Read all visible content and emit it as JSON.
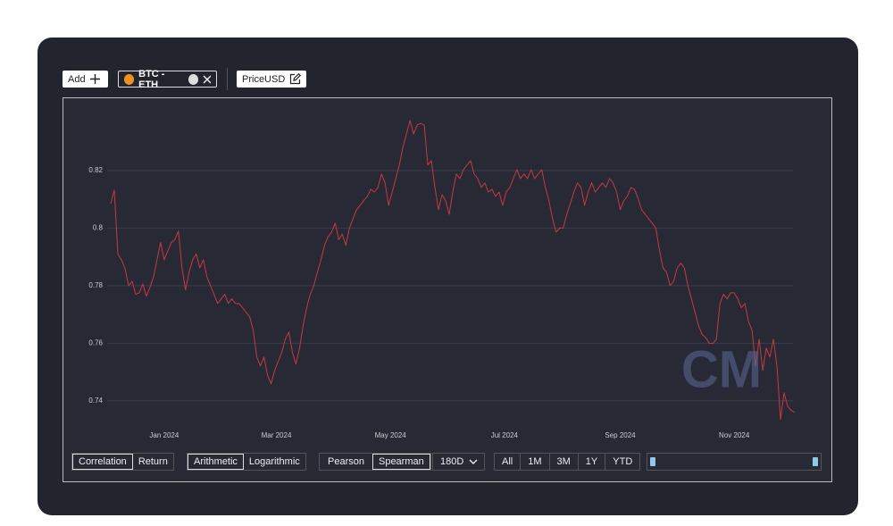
{
  "toolbar": {
    "add": "Add",
    "pair": "BTC - ETH",
    "metric": "PriceUSD"
  },
  "chart_data": {
    "type": "line",
    "color": "#c8393f",
    "grid": true,
    "x": [
      0,
      2,
      4,
      6,
      8,
      10,
      12,
      14,
      16,
      18,
      20,
      22,
      24,
      26,
      28,
      30,
      32,
      34,
      36,
      38,
      40,
      42,
      44,
      46,
      48,
      50,
      52,
      54,
      56,
      58,
      60,
      62,
      64,
      66,
      68,
      70,
      72,
      74,
      76,
      78,
      80,
      82,
      84,
      86,
      88,
      90,
      92,
      94,
      96,
      98,
      100,
      102,
      104,
      106,
      108,
      110,
      112,
      114,
      116,
      118,
      120,
      122,
      124,
      126,
      128,
      130,
      132,
      134,
      136,
      138,
      140,
      142,
      144,
      146,
      148,
      150,
      152,
      154,
      156,
      158,
      160,
      162,
      164,
      166,
      168,
      170,
      172,
      174,
      176,
      178,
      180,
      182,
      184,
      186,
      188,
      190,
      192,
      194,
      196,
      198,
      200,
      202,
      204,
      206,
      208,
      210,
      212,
      214,
      216,
      218,
      220,
      222,
      224,
      226,
      228,
      230,
      232,
      234,
      236,
      238,
      240,
      242,
      244,
      246,
      248,
      250,
      252,
      254,
      256,
      258,
      260,
      262,
      264,
      266,
      268,
      270,
      272,
      274,
      276,
      278,
      280,
      282,
      284,
      286,
      288,
      290,
      292,
      294,
      296,
      298,
      300,
      302,
      304,
      306,
      308,
      310,
      312,
      314,
      316,
      318,
      320,
      322,
      324,
      326,
      328,
      330,
      332,
      334,
      336,
      338,
      340,
      342,
      344,
      346,
      348,
      350,
      352,
      354,
      356,
      358,
      360,
      362,
      364,
      366,
      368,
      370,
      372,
      374,
      376,
      378,
      380,
      382,
      384
    ],
    "values": [
      0.8085,
      0.8132,
      0.791,
      0.789,
      0.786,
      0.78,
      0.7815,
      0.777,
      0.7775,
      0.7806,
      0.7763,
      0.7794,
      0.783,
      0.789,
      0.795,
      0.789,
      0.792,
      0.7949,
      0.796,
      0.799,
      0.7862,
      0.7785,
      0.7847,
      0.789,
      0.791,
      0.7862,
      0.789,
      0.783,
      0.78,
      0.777,
      0.7738,
      0.7754,
      0.777,
      0.7738,
      0.7754,
      0.7738,
      0.7738,
      0.7723,
      0.7707,
      0.7692,
      0.7645,
      0.7552,
      0.7521,
      0.7552,
      0.749,
      0.7459,
      0.7505,
      0.7537,
      0.7568,
      0.7614,
      0.7639,
      0.7568,
      0.7527,
      0.7583,
      0.7661,
      0.7723,
      0.777,
      0.78,
      0.7847,
      0.789,
      0.794,
      0.797,
      0.7986,
      0.8017,
      0.796,
      0.7979,
      0.794,
      0.8,
      0.8033,
      0.8064,
      0.8079,
      0.8095,
      0.811,
      0.8135,
      0.8125,
      0.8141,
      0.8188,
      0.8157,
      0.8079,
      0.8125,
      0.8172,
      0.8219,
      0.8281,
      0.8327,
      0.8374,
      0.8327,
      0.8358,
      0.8364,
      0.8358,
      0.8219,
      0.8234,
      0.8141,
      0.8064,
      0.8116,
      0.8095,
      0.8048,
      0.8125,
      0.8188,
      0.8172,
      0.8203,
      0.8219,
      0.8234,
      0.8188,
      0.8172,
      0.8141,
      0.8157,
      0.8125,
      0.8135,
      0.811,
      0.8125,
      0.8079,
      0.8125,
      0.8141,
      0.8172,
      0.8203,
      0.8172,
      0.8188,
      0.8172,
      0.8203,
      0.8172,
      0.8188,
      0.8203,
      0.8141,
      0.8095,
      0.8033,
      0.7986,
      0.8,
      0.8,
      0.8048,
      0.8085,
      0.8125,
      0.8157,
      0.8141,
      0.8079,
      0.8125,
      0.8157,
      0.8125,
      0.8141,
      0.8157,
      0.8141,
      0.8172,
      0.8157,
      0.8125,
      0.8064,
      0.8095,
      0.811,
      0.8141,
      0.8135,
      0.8104,
      0.8064,
      0.8048,
      0.8033,
      0.8017,
      0.8,
      0.7924,
      0.7862,
      0.7847,
      0.78,
      0.7815,
      0.7862,
      0.7878,
      0.7862,
      0.78,
      0.7754,
      0.7707,
      0.7661,
      0.763,
      0.762,
      0.7599,
      0.7599,
      0.7614,
      0.7738,
      0.777,
      0.7754,
      0.7775,
      0.7775,
      0.7754,
      0.7723,
      0.7738,
      0.7676,
      0.7645,
      0.7521,
      0.7614,
      0.7505,
      0.7583,
      0.7552,
      0.7614,
      0.7521,
      0.7335,
      0.7428,
      0.7381,
      0.7366,
      0.736
    ],
    "xlim": [
      0,
      384
    ],
    "xticks": [
      {
        "value": 30,
        "label": "Jan 2024"
      },
      {
        "value": 93,
        "label": "Mar 2024"
      },
      {
        "value": 157,
        "label": "May 2024"
      },
      {
        "value": 221,
        "label": "Jul 2024"
      },
      {
        "value": 286,
        "label": "Sep 2024"
      },
      {
        "value": 350,
        "label": "Nov 2024"
      }
    ],
    "ylim": [
      0.73,
      0.84
    ],
    "yticks": [
      0.74,
      0.76,
      0.78,
      0.8,
      0.82
    ],
    "watermark": "CM"
  },
  "controls": {
    "measure": [
      "Correlation",
      "Return"
    ],
    "scale": [
      "Arithmetic",
      "Logarithmic"
    ],
    "method": [
      "Pearson",
      "Spearman"
    ],
    "window": "180D",
    "ranges": [
      "All",
      "1M",
      "3M",
      "1Y",
      "YTD"
    ]
  }
}
